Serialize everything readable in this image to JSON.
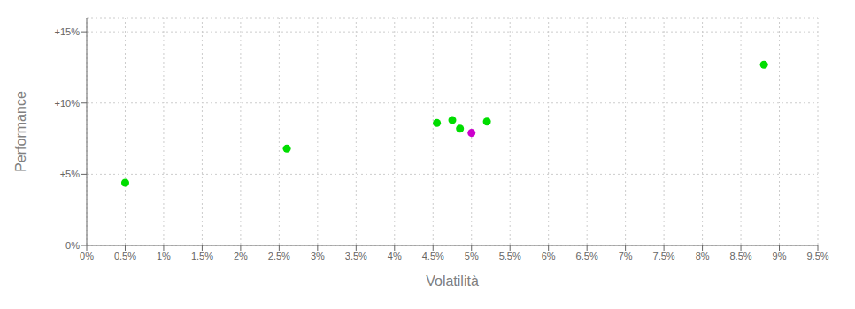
{
  "chart_data": {
    "type": "scatter",
    "x_label": "Volatilità",
    "y_label": "Performance",
    "xlim": [
      0.0,
      0.095
    ],
    "ylim": [
      0.0,
      0.16
    ],
    "xticks": [
      {
        "value": 0.0,
        "label": "0%"
      },
      {
        "value": 0.005,
        "label": "0.5%"
      },
      {
        "value": 0.01,
        "label": "1%"
      },
      {
        "value": 0.015,
        "label": "1.5%"
      },
      {
        "value": 0.02,
        "label": "2%"
      },
      {
        "value": 0.025,
        "label": "2.5%"
      },
      {
        "value": 0.03,
        "label": "3%"
      },
      {
        "value": 0.035,
        "label": "3.5%"
      },
      {
        "value": 0.04,
        "label": "4%"
      },
      {
        "value": 0.045,
        "label": "4.5%"
      },
      {
        "value": 0.05,
        "label": "5%"
      },
      {
        "value": 0.055,
        "label": "5.5%"
      },
      {
        "value": 0.06,
        "label": "6%"
      },
      {
        "value": 0.065,
        "label": "6.5%"
      },
      {
        "value": 0.07,
        "label": "7%"
      },
      {
        "value": 0.075,
        "label": "7.5%"
      },
      {
        "value": 0.08,
        "label": "8%"
      },
      {
        "value": 0.085,
        "label": "8.5%"
      },
      {
        "value": 0.09,
        "label": "9%"
      },
      {
        "value": 0.095,
        "label": "9.5%"
      }
    ],
    "yticks": [
      {
        "value": 0.0,
        "label": "0%"
      },
      {
        "value": 0.05,
        "label": "+5%"
      },
      {
        "value": 0.1,
        "label": "+10%"
      },
      {
        "value": 0.15,
        "label": "+15%"
      }
    ],
    "grid": true,
    "series": [
      {
        "color": "#00dd00",
        "x": [
          0.005,
          0.026,
          0.0455,
          0.0475,
          0.0485,
          0.052,
          0.088
        ],
        "values": [
          0.044,
          0.068,
          0.086,
          0.088,
          0.082,
          0.087,
          0.127
        ]
      },
      {
        "color": "#cc00cc",
        "x": [
          0.05
        ],
        "values": [
          0.079
        ]
      }
    ]
  }
}
